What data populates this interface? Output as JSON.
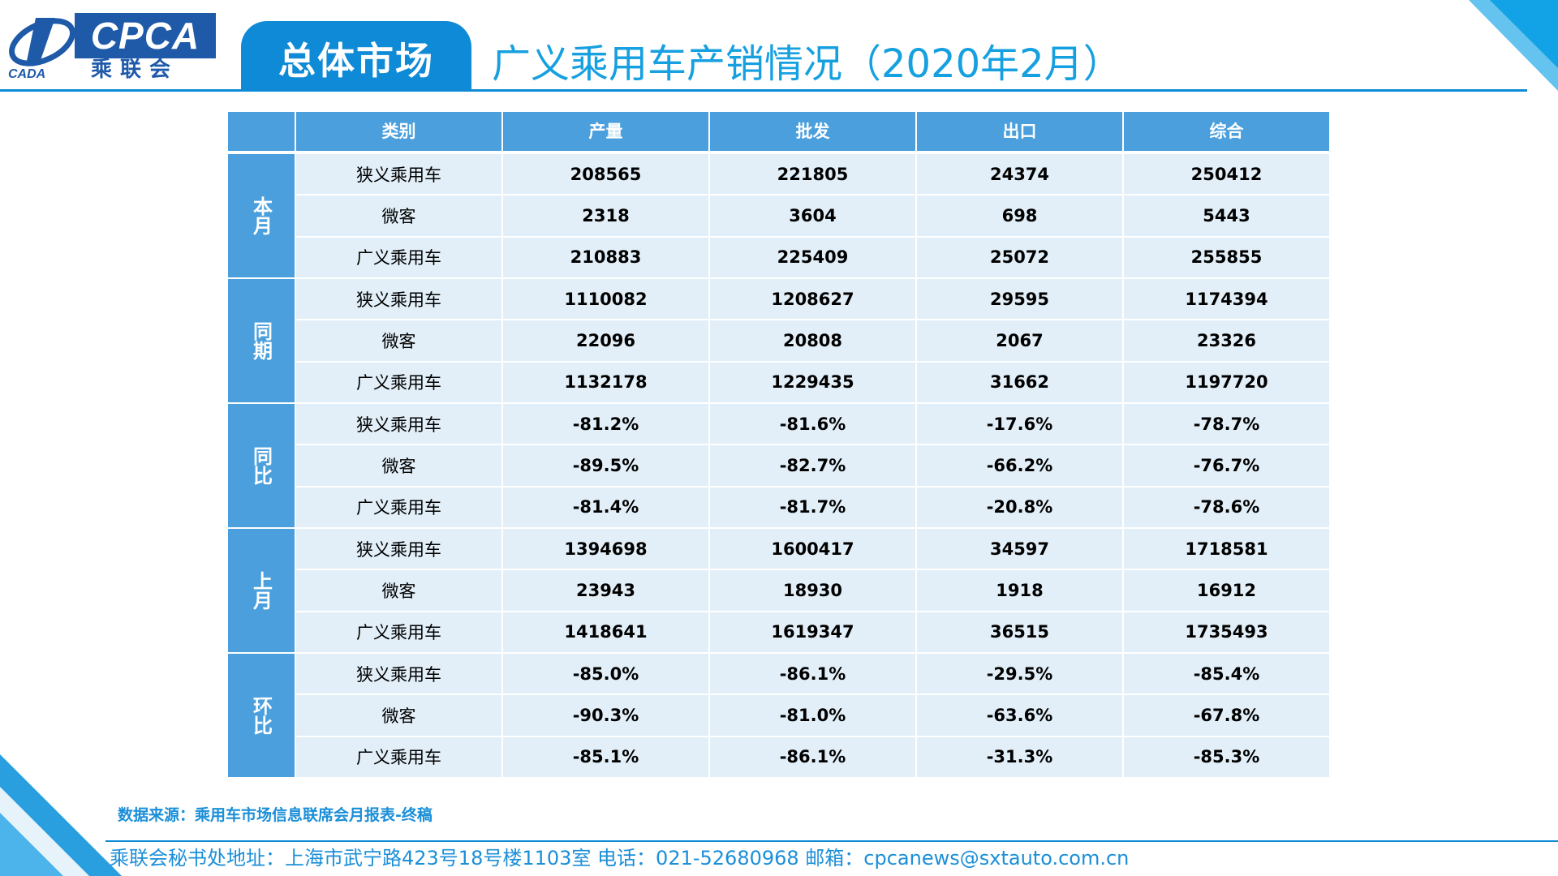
{
  "logo": {
    "en": "CPCA",
    "cn": "乘联会",
    "mark": "CADA"
  },
  "header": {
    "tab": "总体市场",
    "title": "广义乘用车产销情况（2020年2月）"
  },
  "table": {
    "columns": [
      "",
      "类别",
      "产量",
      "批发",
      "出口",
      "综合"
    ],
    "groups": [
      {
        "label": "本月",
        "rows": [
          [
            "狭义乘用车",
            "208565",
            "221805",
            "24374",
            "250412"
          ],
          [
            "微客",
            "2318",
            "3604",
            "698",
            "5443"
          ],
          [
            "广义乘用车",
            "210883",
            "225409",
            "25072",
            "255855"
          ]
        ]
      },
      {
        "label": "同期",
        "rows": [
          [
            "狭义乘用车",
            "1110082",
            "1208627",
            "29595",
            "1174394"
          ],
          [
            "微客",
            "22096",
            "20808",
            "2067",
            "23326"
          ],
          [
            "广义乘用车",
            "1132178",
            "1229435",
            "31662",
            "1197720"
          ]
        ]
      },
      {
        "label": "同比",
        "rows": [
          [
            "狭义乘用车",
            "-81.2%",
            "-81.6%",
            "-17.6%",
            "-78.7%"
          ],
          [
            "微客",
            "-89.5%",
            "-82.7%",
            "-66.2%",
            "-76.7%"
          ],
          [
            "广义乘用车",
            "-81.4%",
            "-81.7%",
            "-20.8%",
            "-78.6%"
          ]
        ]
      },
      {
        "label": "上月",
        "rows": [
          [
            "狭义乘用车",
            "1394698",
            "1600417",
            "34597",
            "1718581"
          ],
          [
            "微客",
            "23943",
            "18930",
            "1918",
            "16912"
          ],
          [
            "广义乘用车",
            "1418641",
            "1619347",
            "36515",
            "1735493"
          ]
        ]
      },
      {
        "label": "环比",
        "rows": [
          [
            "狭义乘用车",
            "-85.0%",
            "-86.1%",
            "-29.5%",
            "-85.4%"
          ],
          [
            "微客",
            "-90.3%",
            "-81.0%",
            "-63.6%",
            "-67.8%"
          ],
          [
            "广义乘用车",
            "-85.1%",
            "-86.1%",
            "-31.3%",
            "-85.3%"
          ]
        ]
      }
    ]
  },
  "footer": {
    "source": "数据来源：乘用车市场信息联席会月报表-终稿",
    "contact": "乘联会秘书处地址：上海市武宁路423号18号楼1103室  电话：021-52680968   邮箱：cpcanews@sxtauto.com.cn"
  },
  "colors": {
    "accent": "#0f8ad6",
    "header_cell": "#4a9fdc",
    "body_cell": "#e2eff8",
    "logo_blue": "#1f5aa9"
  }
}
